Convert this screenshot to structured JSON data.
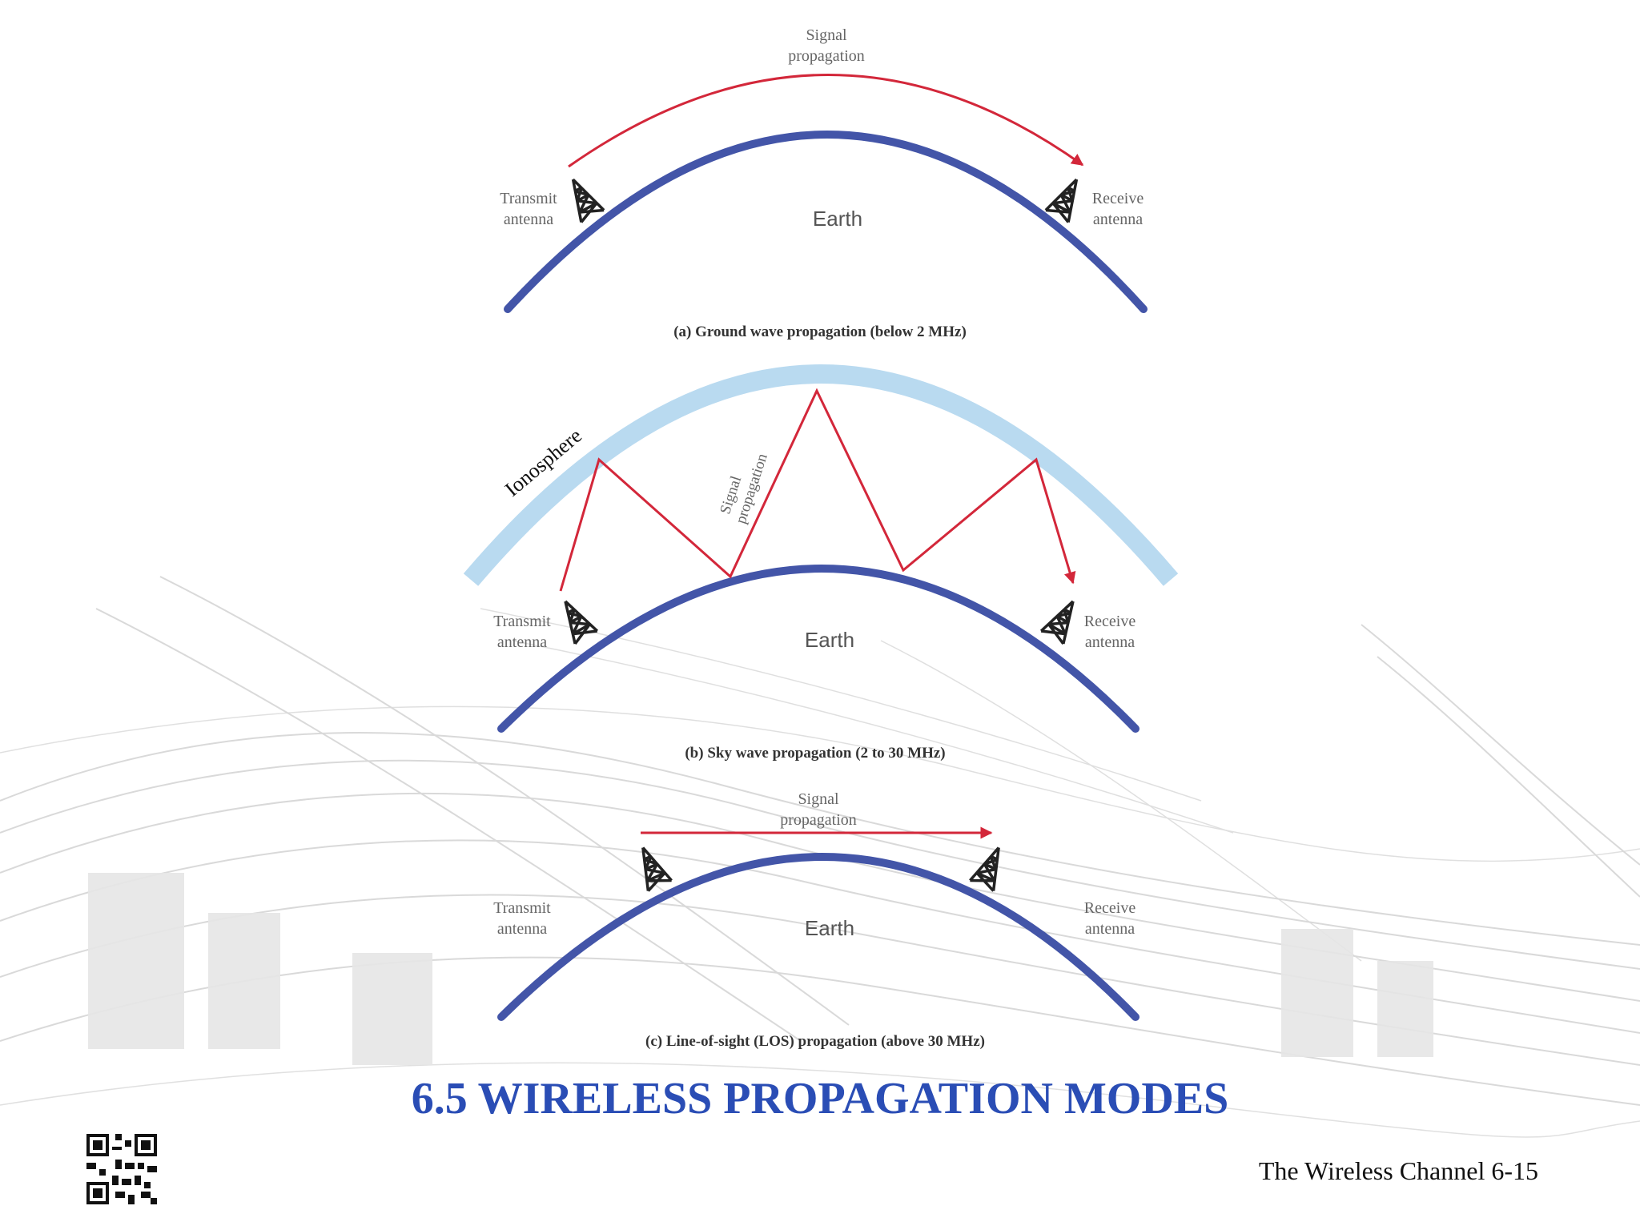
{
  "colors": {
    "earth": "#4355a8",
    "signal": "#d3273a",
    "ionosphere": "#b9daf0",
    "title": "#2a4db5",
    "antenna": "#222222"
  },
  "diagram_a": {
    "signal_label_line1": "Signal",
    "signal_label_line2": "propagation",
    "transmit_line1": "Transmit",
    "transmit_line2": "antenna",
    "receive_line1": "Receive",
    "receive_line2": "antenna",
    "earth_label": "Earth",
    "caption": "(a) Ground wave propagation (below 2 MHz)"
  },
  "diagram_b": {
    "ionosphere_label": "Ionosphere",
    "signal_label_line1": "Signal",
    "signal_label_line2": "propagation",
    "transmit_line1": "Transmit",
    "transmit_line2": "antenna",
    "receive_line1": "Receive",
    "receive_line2": "antenna",
    "earth_label": "Earth",
    "caption": "(b) Sky wave propagation (2 to 30 MHz)"
  },
  "diagram_c": {
    "signal_label_line1": "Signal",
    "signal_label_line2": "propagation",
    "transmit_line1": "Transmit",
    "transmit_line2": "antenna",
    "receive_line1": "Receive",
    "receive_line2": "antenna",
    "earth_label": "Earth",
    "caption": "(c) Line-of-sight (LOS) propagation (above 30 MHz)"
  },
  "slide": {
    "title": "6.5 WIRELESS PROPAGATION MODES",
    "footer": "The Wireless Channel 6-15"
  },
  "icons": {
    "qr": "qr-code-icon",
    "antenna": "antenna-tower-icon",
    "arrow": "arrowhead-icon"
  }
}
